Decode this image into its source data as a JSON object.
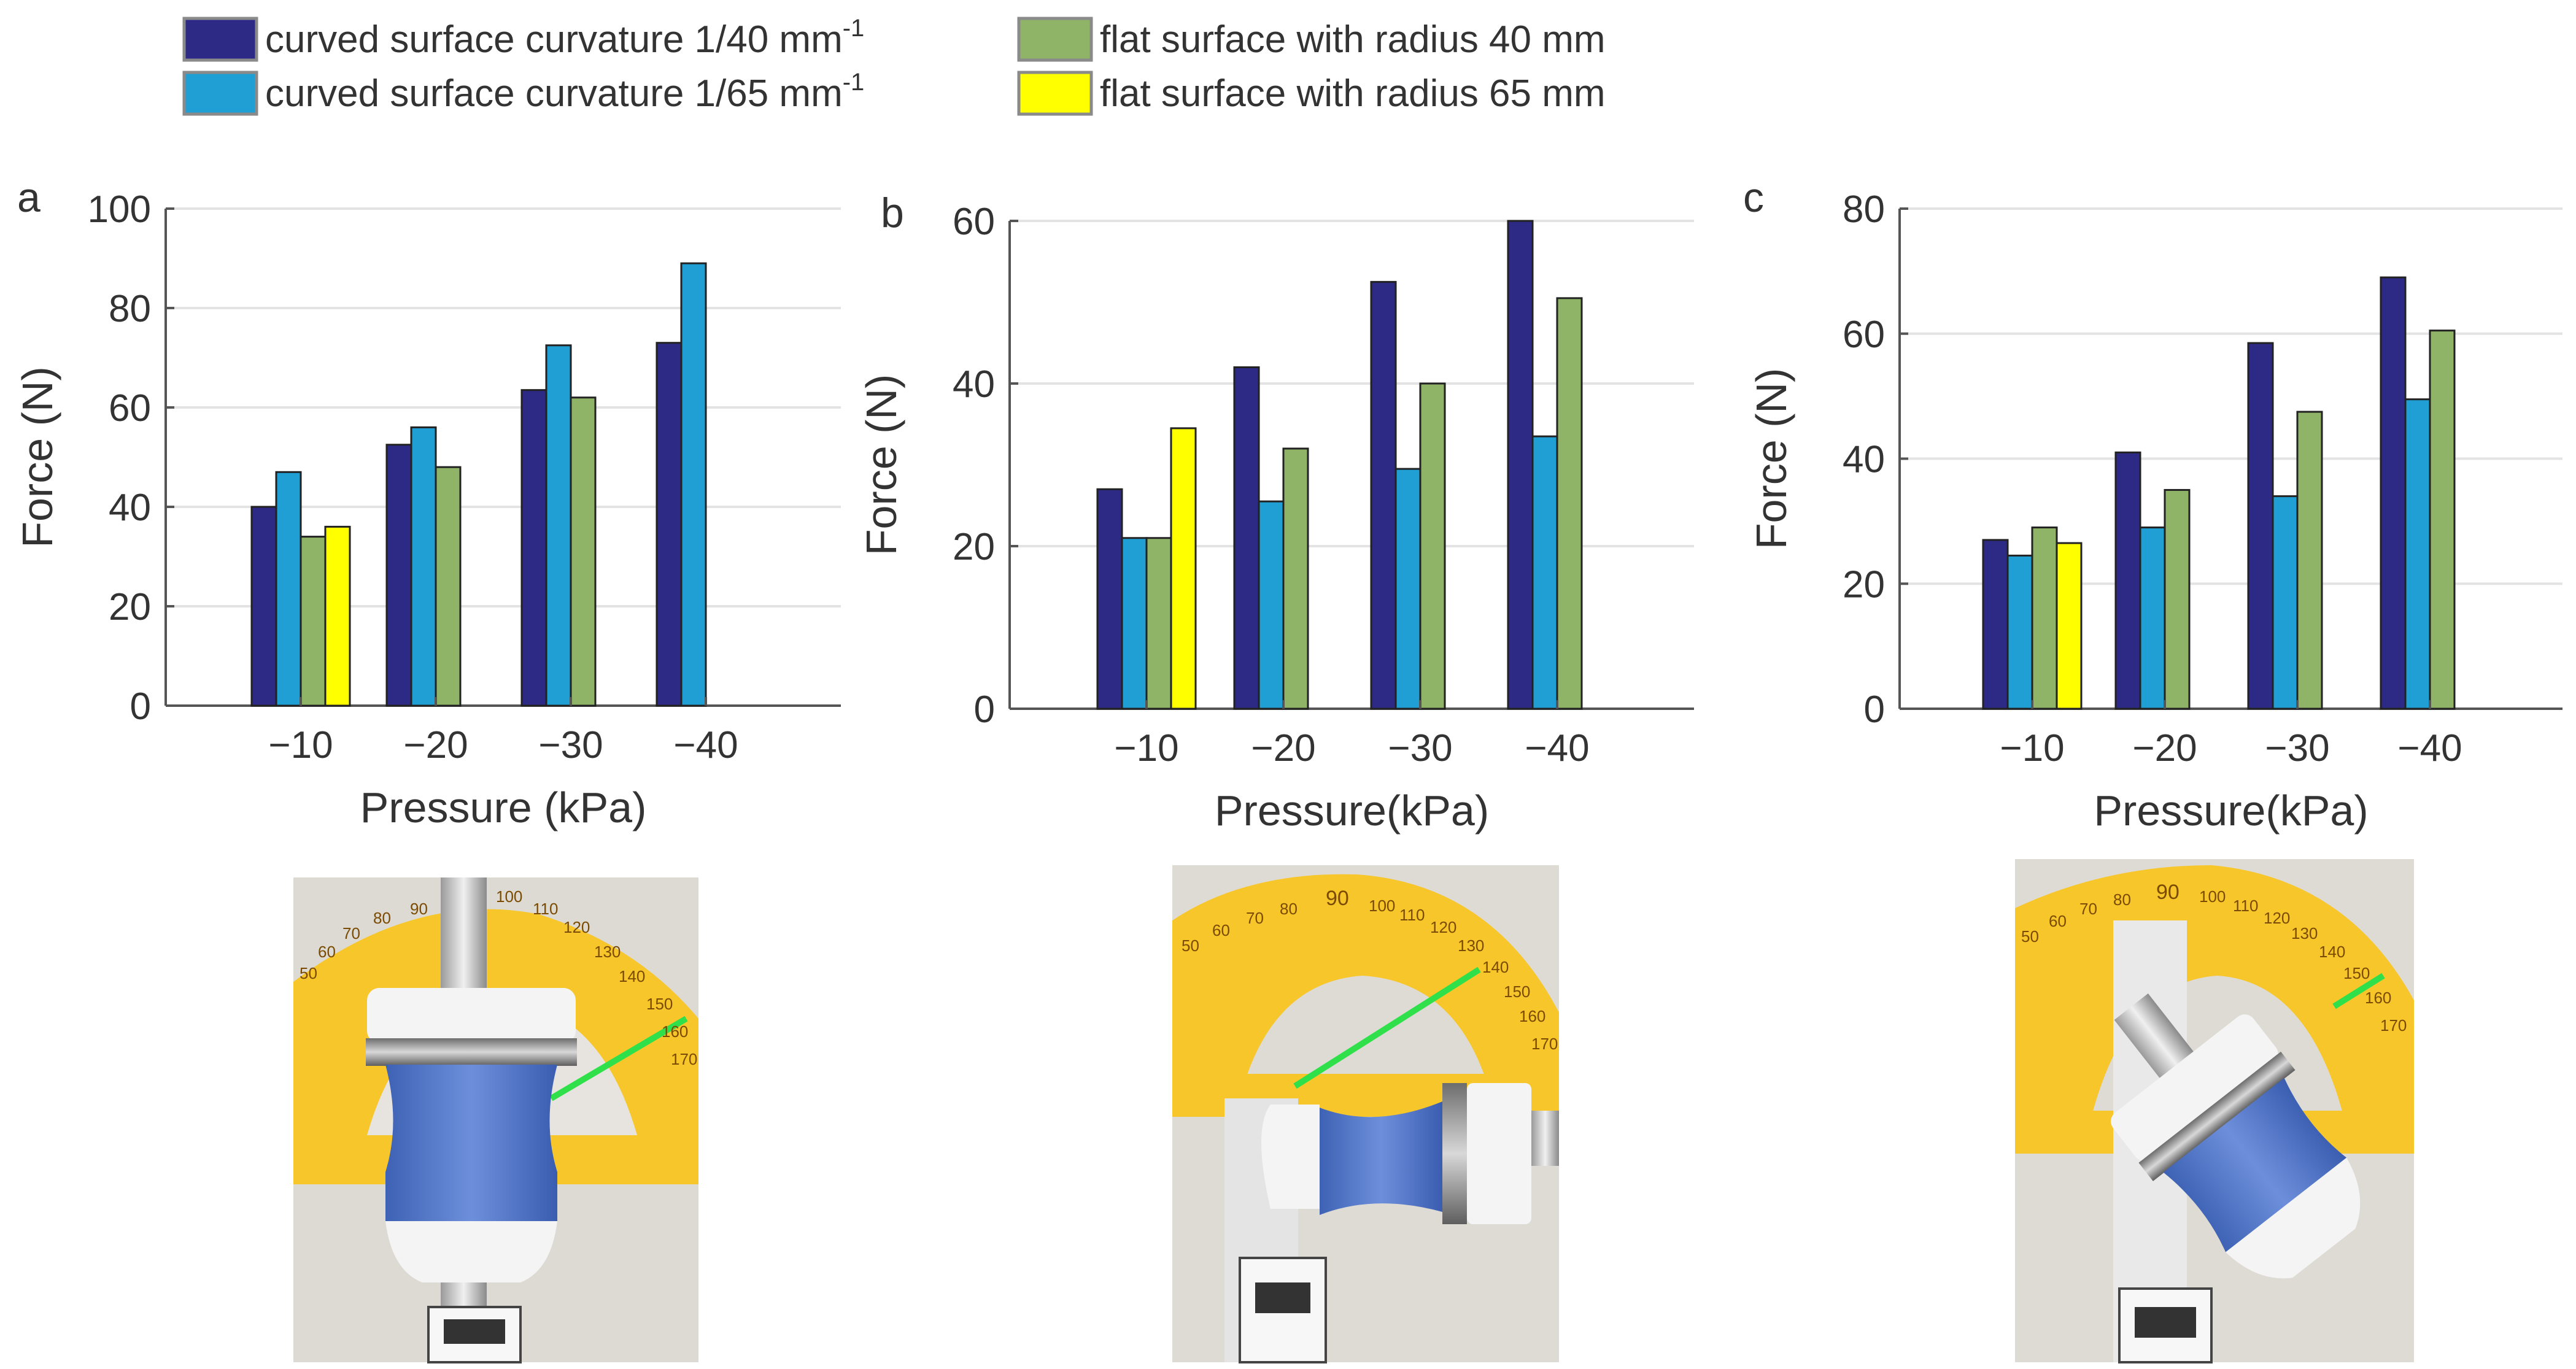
{
  "legend": [
    {
      "id": "c40",
      "label": "curved surface curvature 1/40 mm",
      "sup": "-1",
      "color": "#2d2a85"
    },
    {
      "id": "c65",
      "label": "curved surface curvature 1/65 mm",
      "sup": "-1",
      "color": "#1f9fd4"
    },
    {
      "id": "f40",
      "label": "flat surface with radius 40 mm",
      "sup": "",
      "color": "#8fb467"
    },
    {
      "id": "f65",
      "label": "flat surface with radius 65 mm",
      "sup": "",
      "color": "#ffff00"
    }
  ],
  "chart_data": [
    {
      "type": "bar",
      "panel_label": "a",
      "title": "",
      "xlabel": "Pressure (kPa)",
      "ylabel": "Force (N)",
      "ylim": [
        0,
        100
      ],
      "yticks": [
        0,
        20,
        40,
        60,
        80,
        100
      ],
      "grid": true,
      "categories": [
        "−10",
        "−20",
        "−30",
        "−40"
      ],
      "series": [
        {
          "name": "curved surface curvature 1/40 mm-1",
          "values": [
            40,
            52.5,
            63.5,
            73
          ]
        },
        {
          "name": "curved surface curvature 1/65 mm-1",
          "values": [
            47,
            56,
            72.5,
            89
          ]
        },
        {
          "name": "flat surface with radius 40 mm",
          "values": [
            34,
            48,
            62,
            null
          ]
        },
        {
          "name": "flat surface with radius 65 mm",
          "values": [
            36,
            null,
            null,
            null
          ]
        }
      ]
    },
    {
      "type": "bar",
      "panel_label": "b",
      "title": "",
      "xlabel": "Pressure(kPa)",
      "ylabel": "Force (N)",
      "ylim": [
        0,
        60
      ],
      "yticks": [
        0,
        20,
        40,
        60
      ],
      "grid": true,
      "categories": [
        "−10",
        "−20",
        "−30",
        "−40"
      ],
      "series": [
        {
          "name": "curved surface curvature 1/40 mm-1",
          "values": [
            27,
            42,
            52.5,
            60
          ]
        },
        {
          "name": "curved surface curvature 1/65 mm-1",
          "values": [
            21,
            25.5,
            29.5,
            33.5
          ]
        },
        {
          "name": "flat surface with radius 40 mm",
          "values": [
            21,
            32,
            40,
            50.5
          ]
        },
        {
          "name": "flat surface with radius 65 mm",
          "values": [
            34.5,
            null,
            null,
            null
          ]
        }
      ]
    },
    {
      "type": "bar",
      "panel_label": "c",
      "title": "",
      "xlabel": "Pressure(kPa)",
      "ylabel": "Force (N)",
      "ylim": [
        0,
        80
      ],
      "yticks": [
        0,
        20,
        40,
        60,
        80
      ],
      "grid": true,
      "categories": [
        "−10",
        "−20",
        "−30",
        "−40"
      ],
      "series": [
        {
          "name": "curved surface curvature 1/40 mm-1",
          "values": [
            27,
            41,
            58.5,
            69
          ]
        },
        {
          "name": "curved surface curvature 1/65 mm-1",
          "values": [
            24.5,
            29,
            34,
            49.5
          ]
        },
        {
          "name": "flat surface with radius 40 mm",
          "values": [
            29,
            35,
            47.5,
            60.5
          ]
        },
        {
          "name": "flat surface with radius 65 mm",
          "values": [
            26.5,
            null,
            null,
            null
          ]
        }
      ]
    }
  ],
  "photos": [
    {
      "panel": "a",
      "ruler_numbers": [
        "90",
        "100",
        "110",
        "120",
        "130",
        "140",
        "150",
        "160",
        "170",
        "80",
        "70",
        "60",
        "50"
      ]
    },
    {
      "panel": "b",
      "ruler_numbers": [
        "90",
        "100",
        "110",
        "120",
        "130",
        "140",
        "150",
        "160",
        "170",
        "80",
        "70",
        "60",
        "50"
      ]
    },
    {
      "panel": "c",
      "ruler_numbers": [
        "90",
        "100",
        "110",
        "120",
        "130",
        "140",
        "150",
        "160",
        "170",
        "80",
        "70",
        "60",
        "50"
      ]
    }
  ]
}
